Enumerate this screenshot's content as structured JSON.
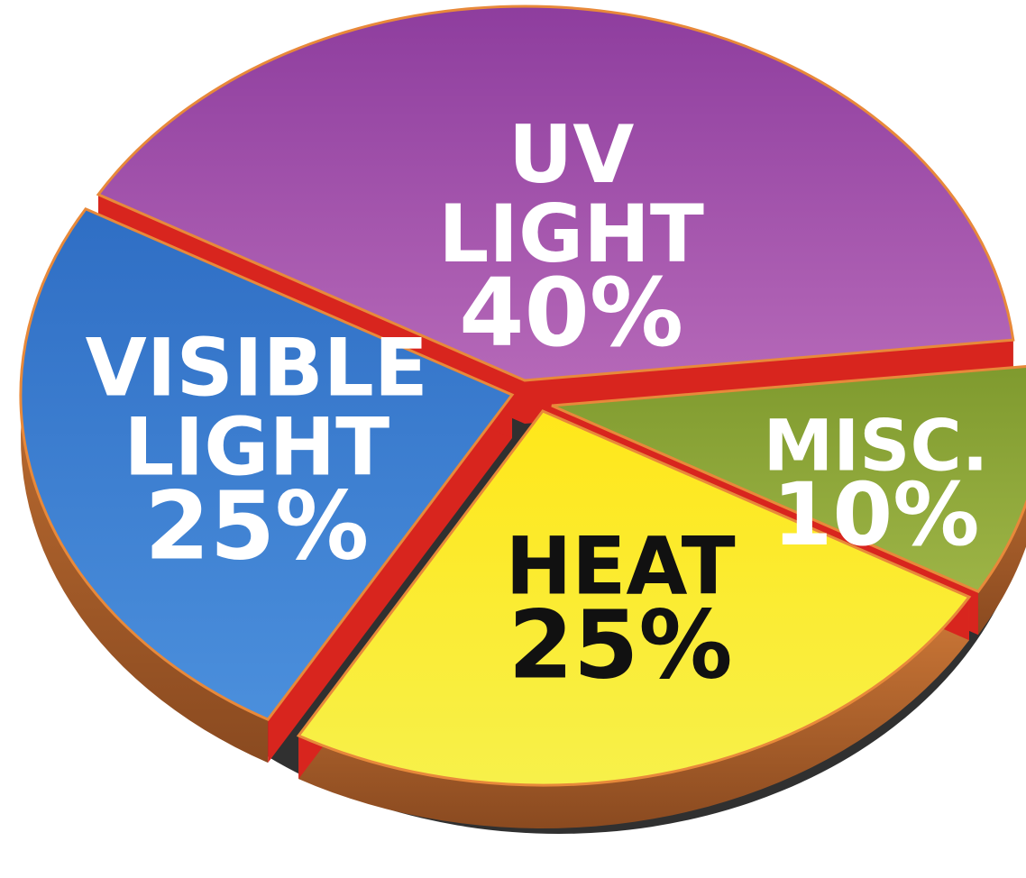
{
  "chart_data": {
    "type": "pie",
    "title": "",
    "slices": [
      {
        "label": "UV LIGHT",
        "value": 40,
        "value_label": "40%",
        "color": "#a453ab",
        "text_color": "#ffffff"
      },
      {
        "label": "MISC.",
        "value": 10,
        "value_label": "10%",
        "color": "#8fa73a",
        "text_color": "#ffffff"
      },
      {
        "label": "HEAT",
        "value": 25,
        "value_label": "25%",
        "color": "#fbe92a",
        "text_color": "#111111"
      },
      {
        "label": "VISIBLE LIGHT",
        "value": 25,
        "value_label": "25%",
        "color": "#3f7fcf",
        "text_color": "#ffffff"
      }
    ],
    "colors": {
      "side_main": "#b8642c",
      "side_cut": "#d8251e",
      "shadow": "#1a1a1a",
      "ring": "#e8893a"
    }
  }
}
